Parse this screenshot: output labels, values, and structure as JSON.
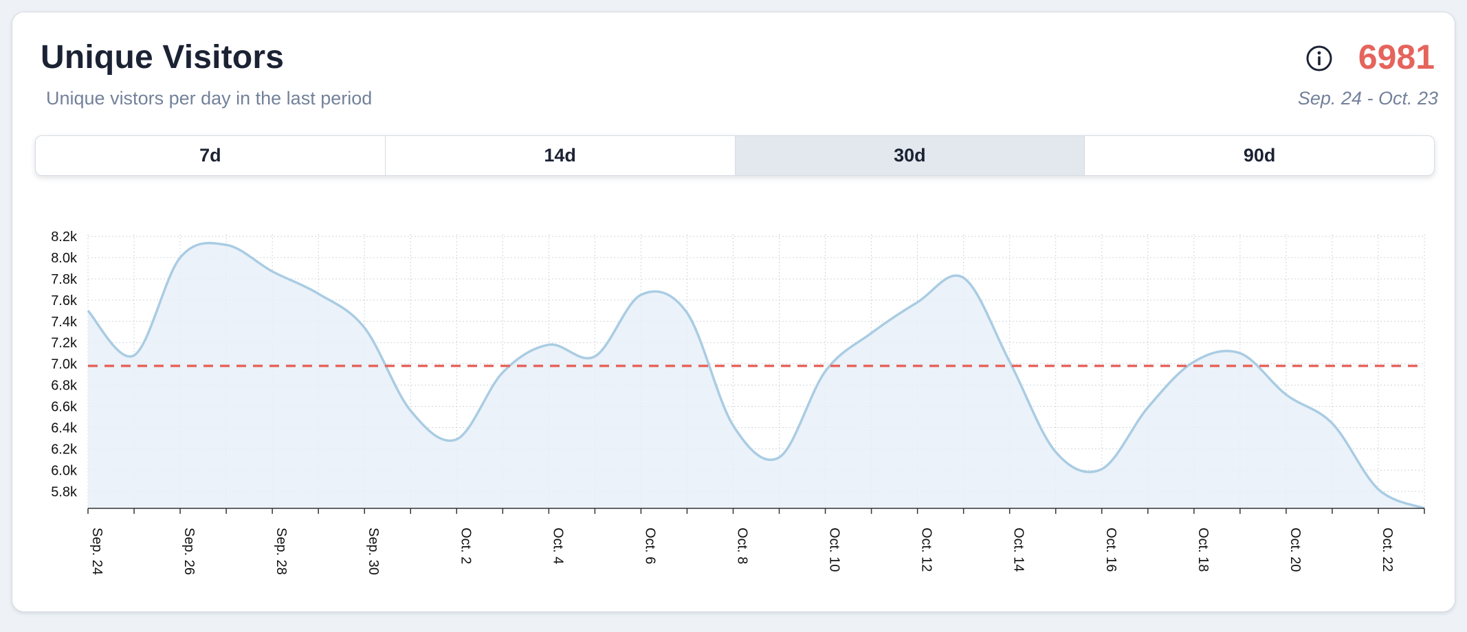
{
  "header": {
    "title": "Unique Visitors",
    "subtitle": "Unique vistors per day in the last period",
    "total": "6981",
    "date_range": "Sep. 24 - Oct. 23",
    "info_icon": "info-circle-icon"
  },
  "tabs": [
    {
      "label": "7d",
      "active": false
    },
    {
      "label": "14d",
      "active": false
    },
    {
      "label": "30d",
      "active": true
    },
    {
      "label": "90d",
      "active": false
    }
  ],
  "colors": {
    "line": "#a9cce3",
    "area": "#e8f0f8",
    "average": "#e5645c",
    "total": "#e5645c",
    "grid": "#cfd4da"
  },
  "chart_data": {
    "type": "area",
    "curve": "smooth",
    "y_ticks": [
      5800,
      6000,
      6200,
      6400,
      6600,
      6800,
      7000,
      7200,
      7400,
      7600,
      7800,
      8000,
      8200
    ],
    "y_tick_labels": [
      "5.8k",
      "6.0k",
      "6.2k",
      "6.4k",
      "6.6k",
      "6.8k",
      "7.0k",
      "7.2k",
      "7.4k",
      "7.6k",
      "7.8k",
      "8.0k",
      "8.2k"
    ],
    "x_tick_labels": [
      "Sep. 24",
      "Sep. 26",
      "Sep. 28",
      "Sep. 30",
      "Oct. 2",
      "Oct. 4",
      "Oct. 6",
      "Oct. 8",
      "Oct. 10",
      "Oct. 12",
      "Oct. 14",
      "Oct. 16",
      "Oct. 18",
      "Oct. 20",
      "Oct. 22"
    ],
    "x_tick_dates": [
      "2023-09-24",
      "2023-09-26",
      "2023-09-28",
      "2023-09-30",
      "2023-10-02",
      "2023-10-04",
      "2023-10-06",
      "2023-10-08",
      "2023-10-10",
      "2023-10-12",
      "2023-10-14",
      "2023-10-16",
      "2023-10-18",
      "2023-10-20",
      "2023-10-22"
    ],
    "x_range": [
      "2023-09-24",
      "2023-10-23"
    ],
    "ylim": [
      5640,
      8220
    ],
    "grid": true,
    "average_line": {
      "value": 6981,
      "style": "dashed"
    },
    "series": [
      {
        "points": [
          {
            "x": "2023-09-24",
            "y": 7500
          },
          {
            "x": "2023-09-25",
            "y": 7080
          },
          {
            "x": "2023-09-26",
            "y": 8000
          },
          {
            "x": "2023-09-27",
            "y": 8120
          },
          {
            "x": "2023-09-28",
            "y": 7870
          },
          {
            "x": "2023-09-29",
            "y": 7660
          },
          {
            "x": "2023-09-30",
            "y": 7340
          },
          {
            "x": "2023-10-01",
            "y": 6560
          },
          {
            "x": "2023-10-02",
            "y": 6290
          },
          {
            "x": "2023-10-03",
            "y": 6920
          },
          {
            "x": "2023-10-04",
            "y": 7180
          },
          {
            "x": "2023-10-05",
            "y": 7070
          },
          {
            "x": "2023-10-06",
            "y": 7650
          },
          {
            "x": "2023-10-07",
            "y": 7480
          },
          {
            "x": "2023-10-08",
            "y": 6420
          },
          {
            "x": "2023-10-09",
            "y": 6120
          },
          {
            "x": "2023-10-10",
            "y": 6930
          },
          {
            "x": "2023-10-11",
            "y": 7290
          },
          {
            "x": "2023-10-12",
            "y": 7580
          },
          {
            "x": "2023-10-13",
            "y": 7810
          },
          {
            "x": "2023-10-14",
            "y": 7020
          },
          {
            "x": "2023-10-15",
            "y": 6170
          },
          {
            "x": "2023-10-16",
            "y": 6010
          },
          {
            "x": "2023-10-17",
            "y": 6590
          },
          {
            "x": "2023-10-18",
            "y": 7020
          },
          {
            "x": "2023-10-19",
            "y": 7100
          },
          {
            "x": "2023-10-20",
            "y": 6710
          },
          {
            "x": "2023-10-21",
            "y": 6440
          },
          {
            "x": "2023-10-22",
            "y": 5820
          },
          {
            "x": "2023-10-23",
            "y": 5640
          }
        ]
      }
    ]
  }
}
